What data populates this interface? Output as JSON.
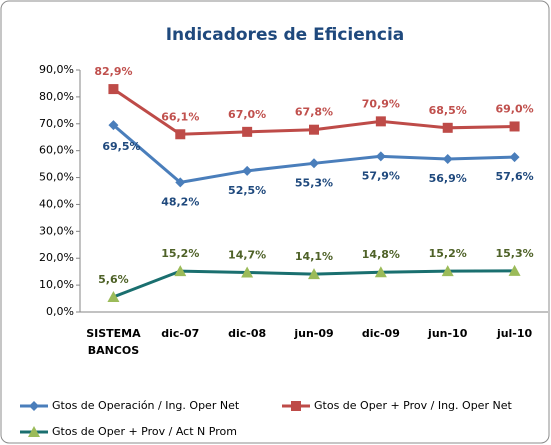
{
  "chart_data": {
    "type": "line",
    "title": "Indicadores de Eficiencia",
    "categories": [
      "SISTEMA BANCOS",
      "dic-07",
      "dic-08",
      "jun-09",
      "dic-09",
      "jun-10",
      "jul-10"
    ],
    "series": [
      {
        "name": "Gtos de Operación  / Ing. Oper Net",
        "color": "#4a7ebb",
        "marker_color": "#4a7ebb",
        "label_color": "#1f497d",
        "marker": "diamond",
        "values": [
          69.5,
          48.2,
          52.5,
          55.3,
          57.9,
          56.9,
          57.6
        ],
        "value_labels": [
          "69,5%",
          "48,2%",
          "52,5%",
          "55,3%",
          "57,9%",
          "56,9%",
          "57,6%"
        ]
      },
      {
        "name": "Gtos de Oper + Prov / Ing. Oper Net",
        "color": "#be4b48",
        "marker_color": "#be4b48",
        "label_color": "#c0504d",
        "marker": "square",
        "values": [
          82.9,
          66.1,
          67.0,
          67.8,
          70.9,
          68.5,
          69.0
        ],
        "value_labels": [
          "82,9%",
          "66,1%",
          "67,0%",
          "67,8%",
          "70,9%",
          "68,5%",
          "69,0%"
        ]
      },
      {
        "name": "Gtos de Oper + Prov / Act N Prom",
        "color": "#1a6f6f",
        "marker_color": "#9bbb59",
        "label_color": "#4f6228",
        "marker": "triangle",
        "values": [
          5.6,
          15.2,
          14.7,
          14.1,
          14.8,
          15.2,
          15.3
        ],
        "value_labels": [
          "5,6%",
          "15,2%",
          "14,7%",
          "14,1%",
          "14,8%",
          "15,2%",
          "15,3%"
        ]
      }
    ],
    "ylim": [
      0,
      90
    ],
    "yticks": [
      {
        "value": 0,
        "label": "0,0%"
      },
      {
        "value": 10,
        "label": "10,0%"
      },
      {
        "value": 20,
        "label": "20,0%"
      },
      {
        "value": 30,
        "label": "30,0%"
      },
      {
        "value": 40,
        "label": "40,0%"
      },
      {
        "value": 50,
        "label": "50,0%"
      },
      {
        "value": 60,
        "label": "60,0%"
      },
      {
        "value": 70,
        "label": "70,0%"
      },
      {
        "value": 80,
        "label": "80,0%"
      },
      {
        "value": 90,
        "label": "90,0%"
      }
    ],
    "grid": false,
    "legend": "bottom"
  }
}
